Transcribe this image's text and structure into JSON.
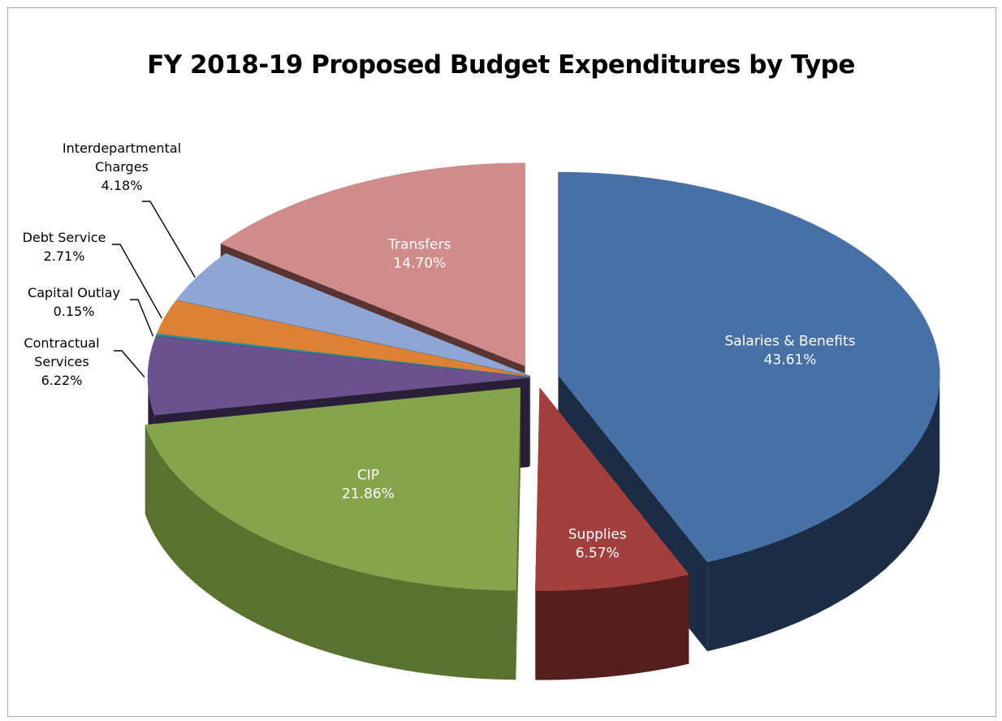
{
  "chart_data": {
    "type": "pie",
    "title": "FY 2018-19 Proposed Budget Expenditures by Type",
    "slices": [
      {
        "name": "Salaries & Benefits",
        "label_lines": [
          "Salaries & Benefits",
          "43.61%"
        ],
        "percent_label": "43.61%",
        "value": 43.61,
        "color": "#4670a6",
        "side_color": "#1b2c44",
        "label_pos": "inside"
      },
      {
        "name": "Supplies",
        "label_lines": [
          "Supplies",
          "6.57%"
        ],
        "percent_label": "6.57%",
        "value": 6.57,
        "color": "#a33f3d",
        "side_color": "#561f1e",
        "label_pos": "inside"
      },
      {
        "name": "CIP",
        "label_lines": [
          "CIP",
          "21.86%"
        ],
        "percent_label": "21.86%",
        "value": 21.86,
        "color": "#86a44c",
        "side_color": "#5a722f",
        "label_pos": "inside"
      },
      {
        "name": "Contractual Services",
        "label_lines": [
          "Contractual",
          "Services",
          "6.22%"
        ],
        "percent_label": "6.22%",
        "value": 6.22,
        "color": "#6c538f",
        "side_color": "#2a1f38",
        "label_pos": "outside"
      },
      {
        "name": "Capital Outlay",
        "label_lines": [
          "Capital Outlay",
          "0.15%"
        ],
        "percent_label": "0.15%",
        "value": 0.15,
        "color": "#2f8e9e",
        "side_color": "#174a52",
        "label_pos": "outside"
      },
      {
        "name": "Debt Service",
        "label_lines": [
          "Debt Service",
          "2.71%"
        ],
        "percent_label": "2.71%",
        "value": 2.71,
        "color": "#dd8134",
        "side_color": "#8a4e1c",
        "label_pos": "outside"
      },
      {
        "name": "Interdepartmental Charges",
        "label_lines": [
          "Interdepartmental",
          "Charges",
          "4.18%"
        ],
        "percent_label": "4.18%",
        "value": 4.18,
        "color": "#8fa6d4",
        "side_color": "#4b5a78",
        "label_pos": "outside"
      },
      {
        "name": "Transfers",
        "label_lines": [
          "Transfers",
          "14.70%"
        ],
        "percent_label": "14.70%",
        "value": 14.7,
        "color": "#cf8c8a",
        "side_color": "#5a3433",
        "label_pos": "inside"
      }
    ],
    "style": "3d-exploded",
    "legend": "none"
  }
}
